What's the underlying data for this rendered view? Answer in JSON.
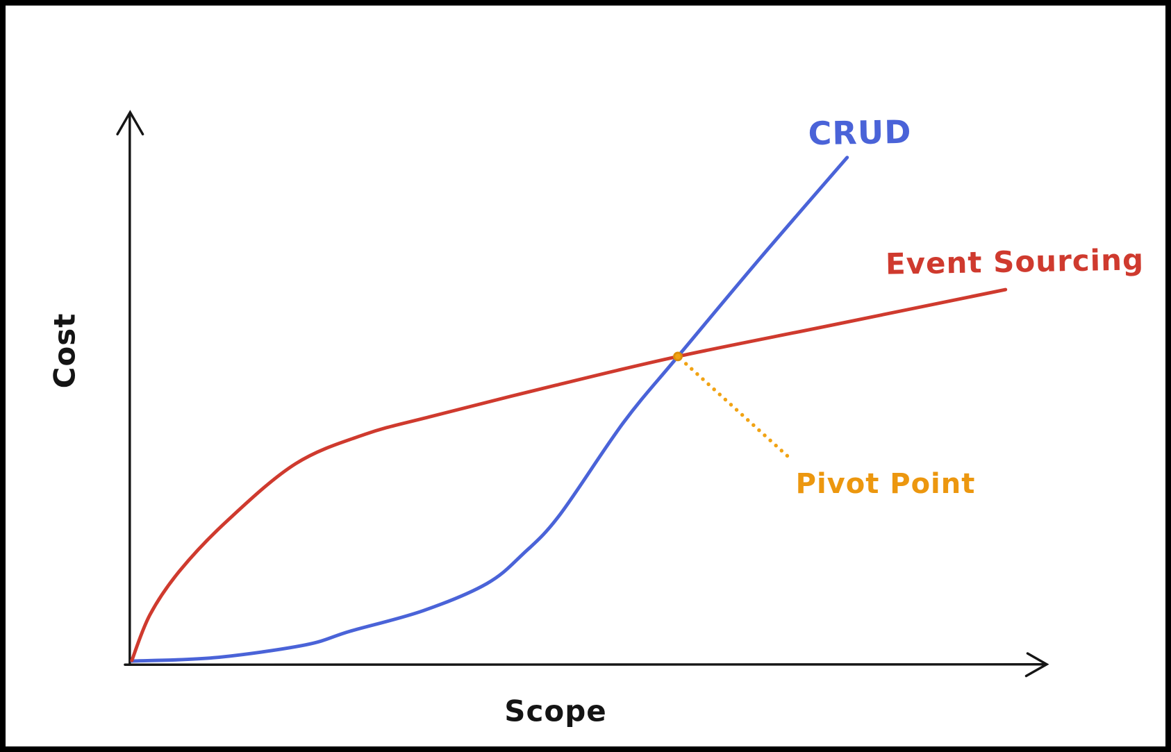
{
  "figure": {
    "background_color": "#ffffff",
    "frame_color": "#000000",
    "axis_color": "#161616"
  },
  "chart_data": {
    "type": "line",
    "style": "hand-drawn sketch, two curves, arrow axes, no ticks, no grid, no numeric scale",
    "title": "",
    "xlabel": "Scope",
    "ylabel": "Cost",
    "x_range": [
      0,
      100
    ],
    "y_range": [
      0,
      100
    ],
    "legend_position": "inline labels at curve ends",
    "series": [
      {
        "name": "CRUD",
        "color": "#4a63d8",
        "shape": "starts flat near zero, accelerates upward (exponential-like), ends highest",
        "points": [
          [
            0,
            0.6
          ],
          [
            9,
            1.2
          ],
          [
            19,
            3.5
          ],
          [
            24,
            6
          ],
          [
            32,
            9.7
          ],
          [
            39,
            14.6
          ],
          [
            43,
            20
          ],
          [
            47,
            27
          ],
          [
            54,
            43.7
          ],
          [
            60,
            55.7
          ],
          [
            69,
            73.4
          ],
          [
            78.6,
            91.7
          ]
        ]
      },
      {
        "name": "Event Sourcing",
        "color": "#cf3a2e",
        "shape": "rises steeply at first then flattens (logarithmic-like), nearly linear shallow slope at right",
        "points": [
          [
            0,
            0.7
          ],
          [
            2,
            9
          ],
          [
            5.3,
            17
          ],
          [
            10.5,
            26
          ],
          [
            18,
            36.3
          ],
          [
            25.6,
            41.6
          ],
          [
            33,
            44.9
          ],
          [
            46.6,
            50.5
          ],
          [
            60,
            55.7
          ],
          [
            76.7,
            61.3
          ],
          [
            96,
            67.8
          ]
        ]
      }
    ],
    "annotations": [
      {
        "type": "point",
        "label": "Pivot Point",
        "x": 60,
        "y": 55.7,
        "meaning": "intersection of CRUD and Event Sourcing cost curves",
        "color": "#ec970f",
        "dot_fill": "#f1a314",
        "dot_stroke": "#dd8e08",
        "leader_style": "dotted",
        "label_anchor": [
          72.3,
          37.3
        ]
      }
    ]
  }
}
